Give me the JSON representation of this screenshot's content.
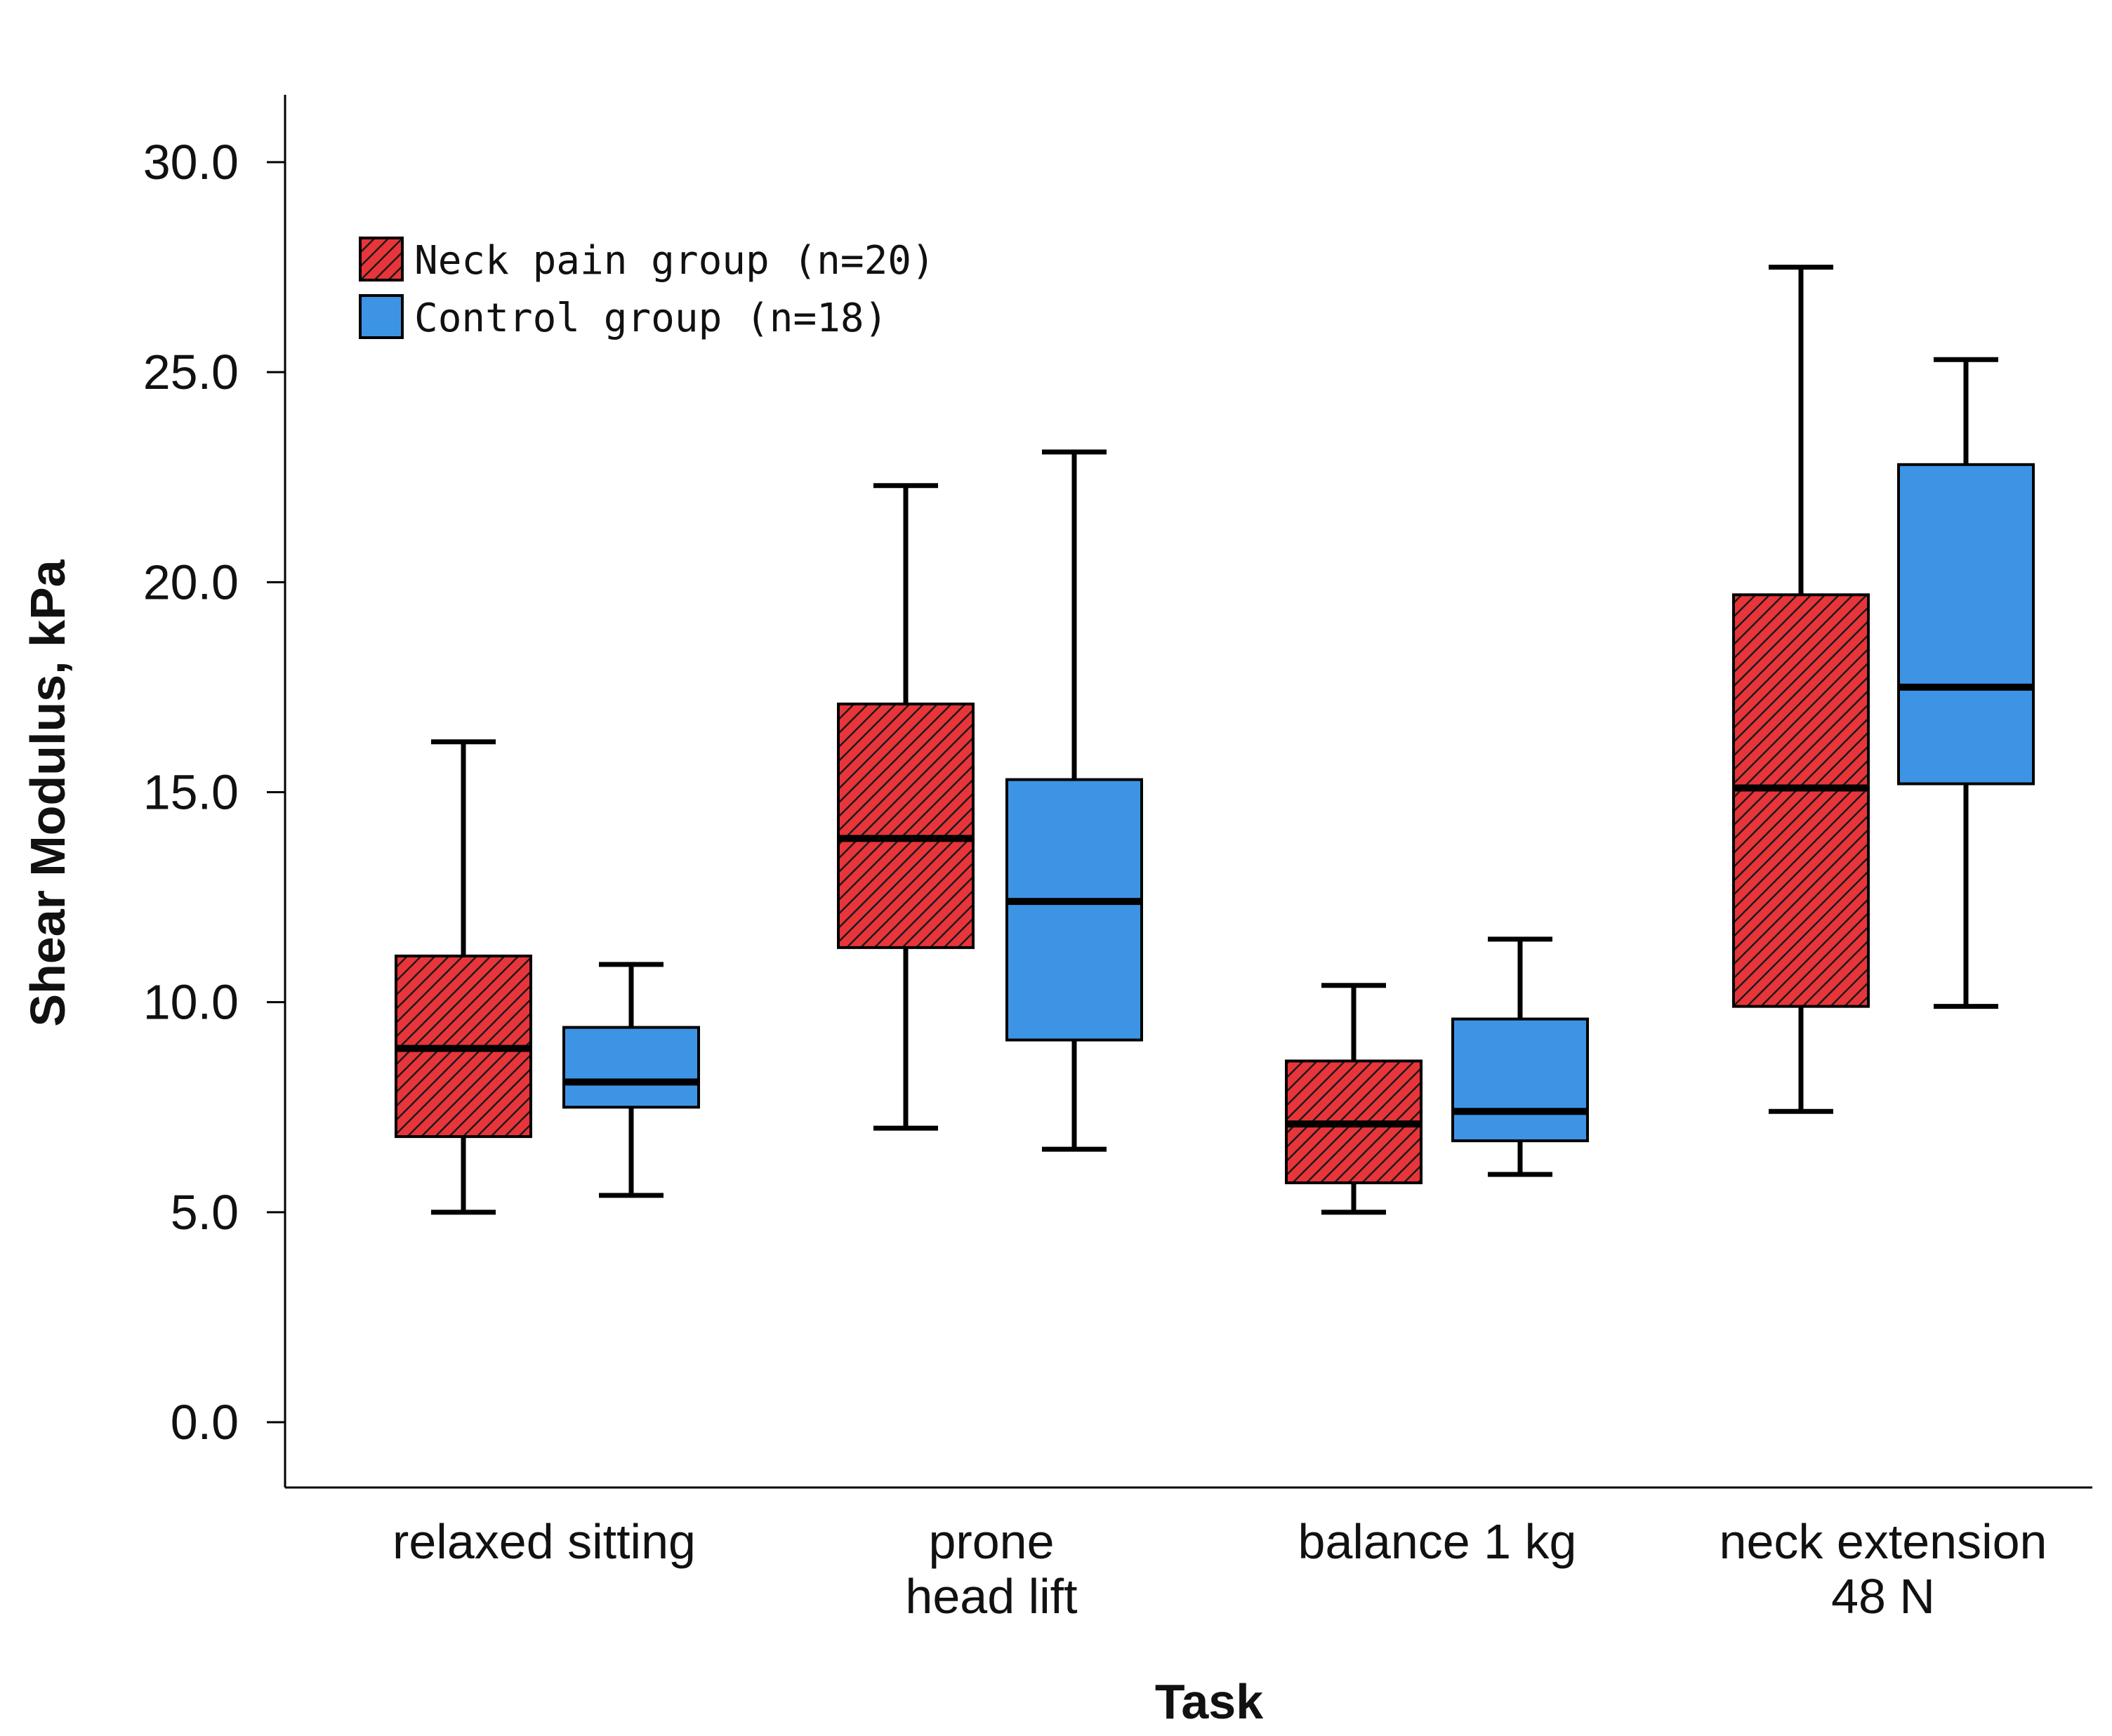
{
  "chart_data": {
    "type": "boxplot",
    "title": "",
    "xlabel": "Task",
    "ylabel": "Shear Modulus, kPa",
    "ylim": [
      -1.5,
      31.5
    ],
    "yticks": [
      "0.0",
      "5.0",
      "10.0",
      "15.0",
      "20.0",
      "25.0",
      "30.0"
    ],
    "ytick_values": [
      0,
      5,
      10,
      15,
      20,
      25,
      30
    ],
    "categories": [
      {
        "lines": [
          "relaxed sitting"
        ]
      },
      {
        "lines": [
          "prone",
          "head lift"
        ]
      },
      {
        "lines": [
          "balance 1 kg"
        ]
      },
      {
        "lines": [
          "neck extension",
          "48 N"
        ]
      }
    ],
    "series": [
      {
        "name": "Neck pain group (n=20)",
        "color": "#e8353a",
        "pattern": "hatched",
        "boxes": [
          {
            "min": 5.0,
            "q1": 6.8,
            "median": 8.9,
            "q3": 11.1,
            "max": 16.2
          },
          {
            "min": 7.0,
            "q1": 11.3,
            "median": 13.9,
            "q3": 17.1,
            "max": 22.3
          },
          {
            "min": 5.0,
            "q1": 5.7,
            "median": 7.1,
            "q3": 8.6,
            "max": 10.4
          },
          {
            "min": 7.4,
            "q1": 9.9,
            "median": 15.1,
            "q3": 19.7,
            "max": 27.5
          }
        ]
      },
      {
        "name": "Control group (n=18)",
        "color": "#3d94e5",
        "pattern": "solid",
        "boxes": [
          {
            "min": 5.4,
            "q1": 7.5,
            "median": 8.1,
            "q3": 9.4,
            "max": 10.9
          },
          {
            "min": 6.5,
            "q1": 9.1,
            "median": 12.4,
            "q3": 15.3,
            "max": 23.1
          },
          {
            "min": 5.9,
            "q1": 6.7,
            "median": 7.4,
            "q3": 9.6,
            "max": 11.5
          },
          {
            "min": 9.9,
            "q1": 15.2,
            "median": 17.5,
            "q3": 22.8,
            "max": 25.3
          }
        ]
      }
    ],
    "legend": {
      "position": "top-left"
    }
  }
}
